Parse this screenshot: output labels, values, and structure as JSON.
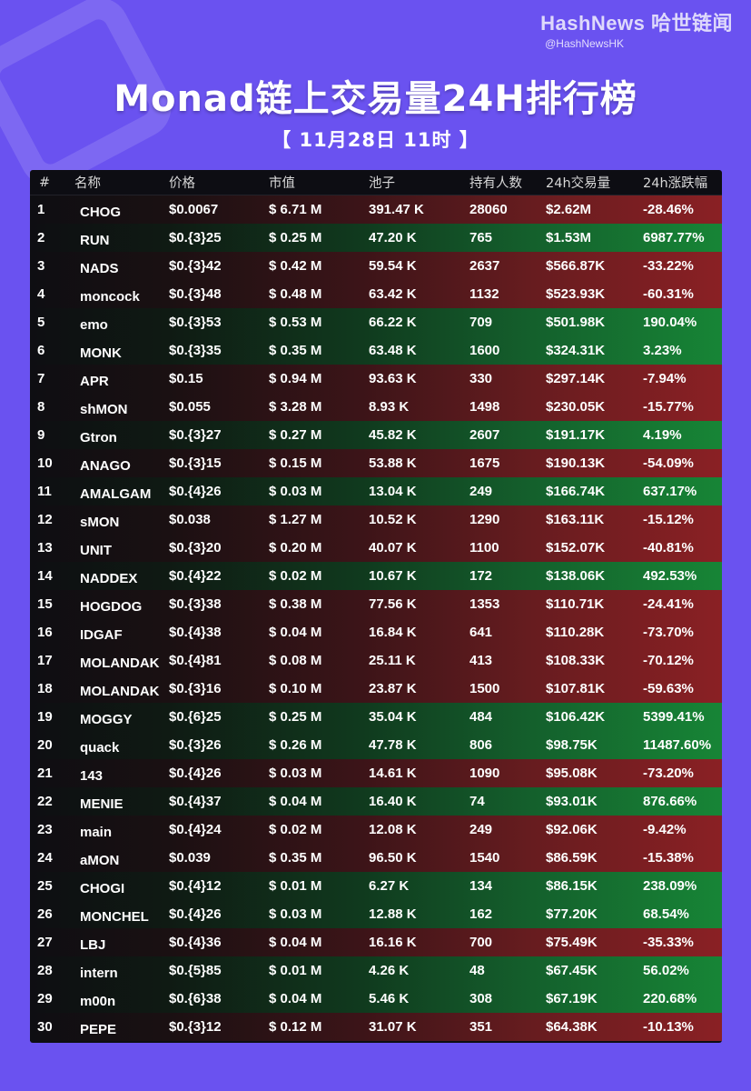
{
  "brand": {
    "name": "HashNews 哈世链闻",
    "handle": "@HashNewsHK"
  },
  "title": "Monad链上交易量24H排行榜",
  "date": "【 11月28日 11时 】",
  "colors": {
    "background": "#6a52f0",
    "positive": "#178536",
    "negative": "#8a2024"
  },
  "table": {
    "headers": [
      "#",
      "名称",
      "价格",
      "市值",
      "池子",
      "持有人数",
      "24h交易量",
      "24h涨跌幅"
    ],
    "rows": [
      {
        "rank": "1",
        "name": "CHOG",
        "price": "$0.0067",
        "mcap": "$ 6.71 M",
        "pool": "391.47 K",
        "holders": "28060",
        "vol": "$2.62M",
        "chg": "-28.46%"
      },
      {
        "rank": "2",
        "name": "RUN",
        "price": "$0.{3}25",
        "mcap": "$ 0.25 M",
        "pool": "47.20 K",
        "holders": "765",
        "vol": "$1.53M",
        "chg": "6987.77%"
      },
      {
        "rank": "3",
        "name": "NADS",
        "price": "$0.{3}42",
        "mcap": "$ 0.42 M",
        "pool": "59.54 K",
        "holders": "2637",
        "vol": "$566.87K",
        "chg": "-33.22%"
      },
      {
        "rank": "4",
        "name": "moncock",
        "price": "$0.{3}48",
        "mcap": "$ 0.48 M",
        "pool": "63.42 K",
        "holders": "1132",
        "vol": "$523.93K",
        "chg": "-60.31%"
      },
      {
        "rank": "5",
        "name": "emo",
        "price": "$0.{3}53",
        "mcap": "$ 0.53 M",
        "pool": "66.22 K",
        "holders": "709",
        "vol": "$501.98K",
        "chg": "190.04%"
      },
      {
        "rank": "6",
        "name": "MONK",
        "price": "$0.{3}35",
        "mcap": "$ 0.35 M",
        "pool": "63.48 K",
        "holders": "1600",
        "vol": "$324.31K",
        "chg": "3.23%"
      },
      {
        "rank": "7",
        "name": "APR",
        "price": "$0.15",
        "mcap": "$ 0.94 M",
        "pool": "93.63 K",
        "holders": "330",
        "vol": "$297.14K",
        "chg": "-7.94%"
      },
      {
        "rank": "8",
        "name": "shMON",
        "price": "$0.055",
        "mcap": "$ 3.28 M",
        "pool": "8.93 K",
        "holders": "1498",
        "vol": "$230.05K",
        "chg": "-15.77%"
      },
      {
        "rank": "9",
        "name": "Gtron",
        "price": "$0.{3}27",
        "mcap": "$ 0.27 M",
        "pool": "45.82 K",
        "holders": "2607",
        "vol": "$191.17K",
        "chg": "4.19%"
      },
      {
        "rank": "10",
        "name": "ANAGO",
        "price": "$0.{3}15",
        "mcap": "$ 0.15 M",
        "pool": "53.88 K",
        "holders": "1675",
        "vol": "$190.13K",
        "chg": "-54.09%"
      },
      {
        "rank": "11",
        "name": "AMALGAM",
        "price": "$0.{4}26",
        "mcap": "$ 0.03 M",
        "pool": "13.04 K",
        "holders": "249",
        "vol": "$166.74K",
        "chg": "637.17%"
      },
      {
        "rank": "12",
        "name": "sMON",
        "price": "$0.038",
        "mcap": "$ 1.27 M",
        "pool": "10.52 K",
        "holders": "1290",
        "vol": "$163.11K",
        "chg": "-15.12%"
      },
      {
        "rank": "13",
        "name": "UNIT",
        "price": "$0.{3}20",
        "mcap": "$ 0.20 M",
        "pool": "40.07 K",
        "holders": "1100",
        "vol": "$152.07K",
        "chg": "-40.81%"
      },
      {
        "rank": "14",
        "name": "NADDEX",
        "price": "$0.{4}22",
        "mcap": "$ 0.02 M",
        "pool": "10.67 K",
        "holders": "172",
        "vol": "$138.06K",
        "chg": "492.53%"
      },
      {
        "rank": "15",
        "name": "HOGDOG",
        "price": "$0.{3}38",
        "mcap": "$ 0.38 M",
        "pool": "77.56 K",
        "holders": "1353",
        "vol": "$110.71K",
        "chg": "-24.41%"
      },
      {
        "rank": "16",
        "name": "IDGAF",
        "price": "$0.{4}38",
        "mcap": "$ 0.04 M",
        "pool": "16.84 K",
        "holders": "641",
        "vol": "$110.28K",
        "chg": "-73.70%"
      },
      {
        "rank": "17",
        "name": "MOLANDAK",
        "price": "$0.{4}81",
        "mcap": "$ 0.08 M",
        "pool": "25.11 K",
        "holders": "413",
        "vol": "$108.33K",
        "chg": "-70.12%"
      },
      {
        "rank": "18",
        "name": "MOLANDAK",
        "price": "$0.{3}16",
        "mcap": "$ 0.10 M",
        "pool": "23.87 K",
        "holders": "1500",
        "vol": "$107.81K",
        "chg": "-59.63%"
      },
      {
        "rank": "19",
        "name": "MOGGY",
        "price": "$0.{6}25",
        "mcap": "$ 0.25 M",
        "pool": "35.04 K",
        "holders": "484",
        "vol": "$106.42K",
        "chg": "5399.41%"
      },
      {
        "rank": "20",
        "name": "quack",
        "price": "$0.{3}26",
        "mcap": "$ 0.26 M",
        "pool": "47.78 K",
        "holders": "806",
        "vol": "$98.75K",
        "chg": "11487.60%"
      },
      {
        "rank": "21",
        "name": "143",
        "price": "$0.{4}26",
        "mcap": "$ 0.03 M",
        "pool": "14.61 K",
        "holders": "1090",
        "vol": "$95.08K",
        "chg": "-73.20%"
      },
      {
        "rank": "22",
        "name": "MENIE",
        "price": "$0.{4}37",
        "mcap": "$ 0.04 M",
        "pool": "16.40 K",
        "holders": "74",
        "vol": "$93.01K",
        "chg": "876.66%"
      },
      {
        "rank": "23",
        "name": "main",
        "price": "$0.{4}24",
        "mcap": "$ 0.02 M",
        "pool": "12.08 K",
        "holders": "249",
        "vol": "$92.06K",
        "chg": "-9.42%"
      },
      {
        "rank": "24",
        "name": "aMON",
        "price": "$0.039",
        "mcap": "$ 0.35 M",
        "pool": "96.50 K",
        "holders": "1540",
        "vol": "$86.59K",
        "chg": "-15.38%"
      },
      {
        "rank": "25",
        "name": "CHOGI",
        "price": "$0.{4}12",
        "mcap": "$ 0.01 M",
        "pool": "6.27 K",
        "holders": "134",
        "vol": "$86.15K",
        "chg": "238.09%"
      },
      {
        "rank": "26",
        "name": "MONCHEL",
        "price": "$0.{4}26",
        "mcap": "$ 0.03 M",
        "pool": "12.88 K",
        "holders": "162",
        "vol": "$77.20K",
        "chg": "68.54%"
      },
      {
        "rank": "27",
        "name": "LBJ",
        "price": "$0.{4}36",
        "mcap": "$ 0.04 M",
        "pool": "16.16 K",
        "holders": "700",
        "vol": "$75.49K",
        "chg": "-35.33%"
      },
      {
        "rank": "28",
        "name": "intern",
        "price": "$0.{5}85",
        "mcap": "$ 0.01 M",
        "pool": "4.26 K",
        "holders": "48",
        "vol": "$67.45K",
        "chg": "56.02%"
      },
      {
        "rank": "29",
        "name": "m00n",
        "price": "$0.{6}38",
        "mcap": "$ 0.04 M",
        "pool": "5.46 K",
        "holders": "308",
        "vol": "$67.19K",
        "chg": "220.68%"
      },
      {
        "rank": "30",
        "name": "PEPE",
        "price": "$0.{3}12",
        "mcap": "$ 0.12 M",
        "pool": "31.07 K",
        "holders": "351",
        "vol": "$64.38K",
        "chg": "-10.13%"
      }
    ]
  }
}
